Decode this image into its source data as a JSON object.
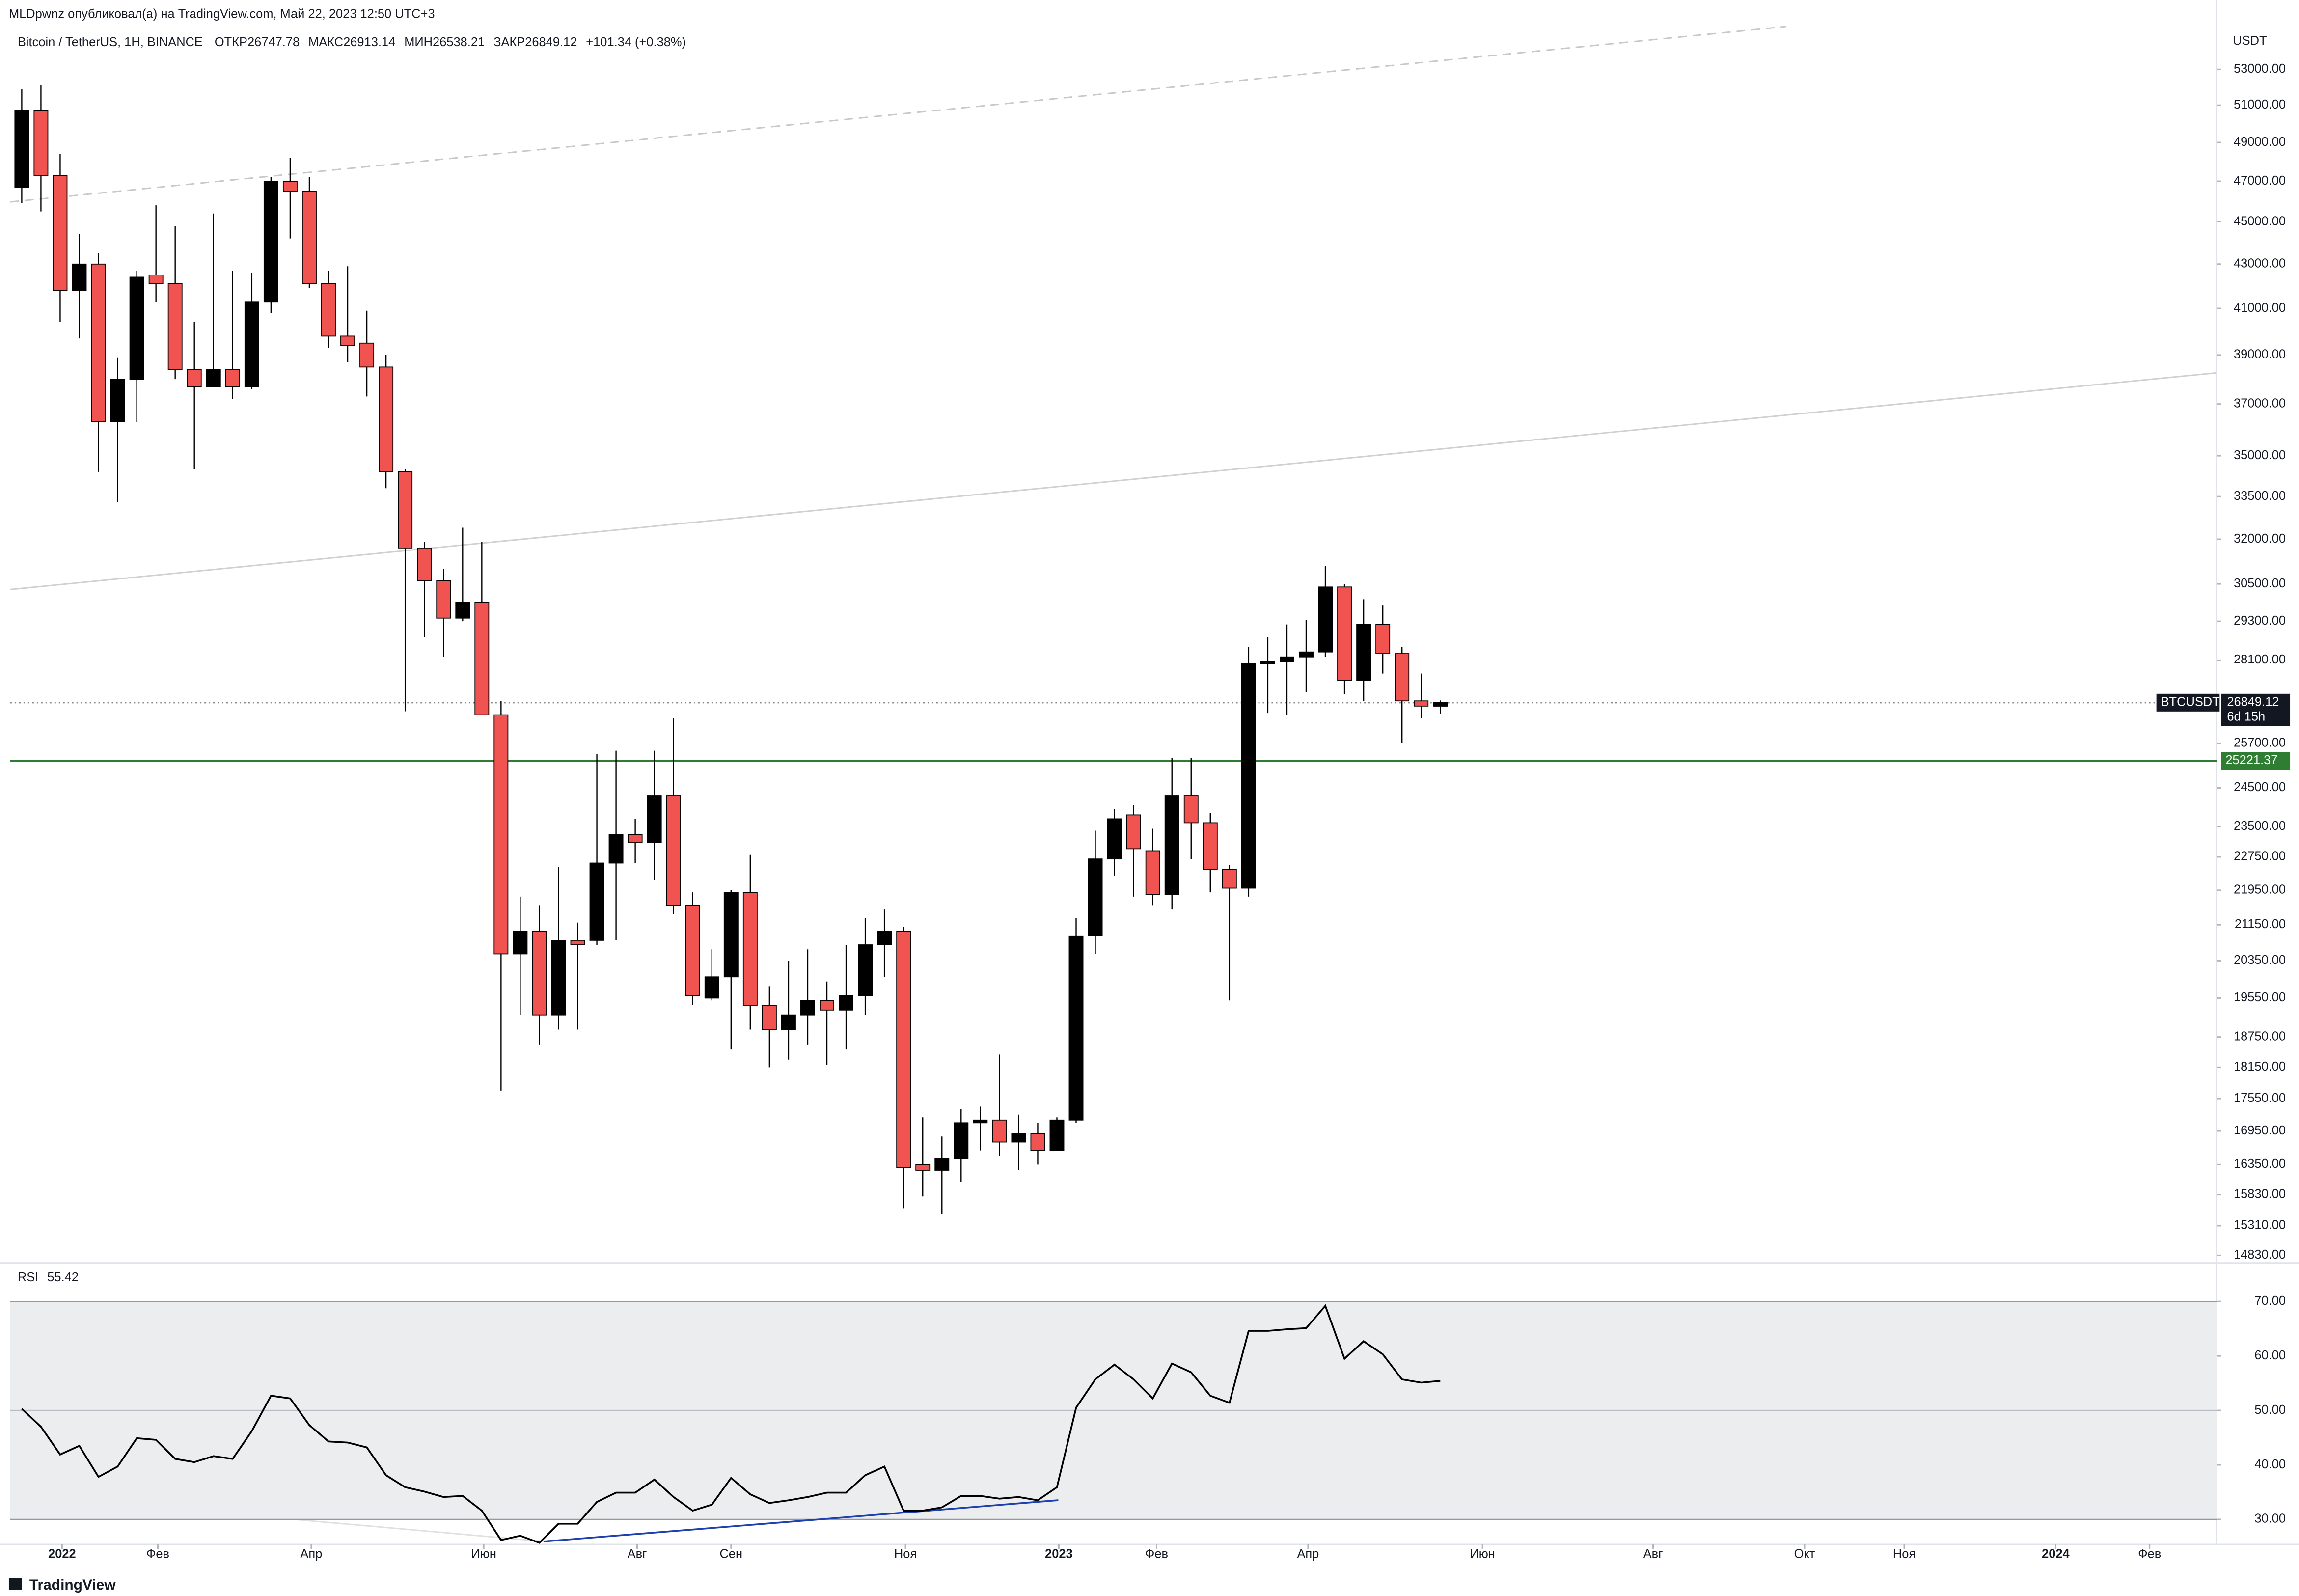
{
  "header": {
    "published": "MLDpwnz опубликовал(а) на TradingView.com, Май 22, 2023 12:50 UTC+3",
    "symbol": "Bitcoin / TetherUS, 1H, BINANCE",
    "ohlc": [
      {
        "label": "ОТКР",
        "value": "26747.78"
      },
      {
        "label": "МАКС",
        "value": "26913.14"
      },
      {
        "label": "МИН",
        "value": "26538.21"
      },
      {
        "label": "ЗАКР",
        "value": "26849.12"
      }
    ],
    "change": "+101.34 (+0.38%)"
  },
  "chart_data": [
    {
      "type": "candlestick",
      "currency": "USDT",
      "log_scale": true,
      "up_color": "#000000",
      "down_color": "#f05350",
      "open": [
        46700,
        50700,
        47300,
        41800,
        43000,
        36300,
        38000,
        42500,
        42100,
        38400,
        37700,
        38400,
        37700,
        41300,
        47000,
        46500,
        42100,
        39800,
        39500,
        38500,
        34400,
        31700,
        30600,
        29400,
        29900,
        26500,
        20500,
        21000,
        19200,
        20800,
        20800,
        22600,
        23300,
        23100,
        24300,
        21600,
        19550,
        20000,
        21900,
        19400,
        18900,
        19200,
        19500,
        19300,
        19600,
        20700,
        21000,
        16350,
        16250,
        16450,
        17100,
        17150,
        16750,
        16900,
        16600,
        17150,
        20900,
        22700,
        23800,
        22900,
        21850,
        24300,
        23600,
        22450,
        22000,
        28000,
        28050,
        28200,
        28350,
        30400,
        27500,
        29200,
        28300,
        26900,
        26747.78
      ],
      "high": [
        51900,
        52100,
        48400,
        44400,
        43500,
        38900,
        42700,
        45800,
        44800,
        40400,
        45400,
        42700,
        42600,
        47200,
        48200,
        47200,
        42700,
        42900,
        40900,
        39000,
        34500,
        31900,
        31000,
        32400,
        31900,
        26900,
        21800,
        21600,
        22500,
        21200,
        25400,
        25500,
        23700,
        25500,
        26400,
        21900,
        20600,
        21950,
        22800,
        19800,
        20350,
        20600,
        19900,
        20700,
        21300,
        21500,
        21100,
        17200,
        16850,
        17350,
        17400,
        18400,
        17250,
        17100,
        17200,
        21300,
        23400,
        23950,
        24050,
        23450,
        25300,
        25300,
        23850,
        22550,
        28500,
        28800,
        29200,
        29350,
        31100,
        30500,
        30000,
        29800,
        28500,
        27700,
        26913.14
      ],
      "low": [
        45900,
        45500,
        40400,
        39700,
        34400,
        33300,
        36300,
        41300,
        38000,
        34500,
        37700,
        37200,
        37600,
        40800,
        44200,
        41900,
        39300,
        38700,
        37300,
        33800,
        26600,
        28800,
        28200,
        29300,
        26500,
        17700,
        19200,
        18600,
        18900,
        18900,
        20700,
        20800,
        22600,
        22200,
        21400,
        19400,
        19500,
        18500,
        18900,
        18150,
        18300,
        18600,
        18200,
        18500,
        19200,
        20000,
        15600,
        15800,
        15500,
        16050,
        16600,
        16500,
        16250,
        16350,
        16600,
        17100,
        20500,
        22300,
        21800,
        21600,
        21500,
        22700,
        21900,
        19500,
        21800,
        26550,
        26500,
        27150,
        28200,
        27100,
        26900,
        27700,
        25700,
        26400,
        26538.21
      ],
      "close": [
        50700,
        47300,
        41800,
        43000,
        36300,
        38000,
        42400,
        42100,
        38400,
        37700,
        38400,
        37700,
        41300,
        47000,
        46500,
        42100,
        39800,
        39400,
        38500,
        34400,
        31700,
        30600,
        29400,
        29900,
        26500,
        20500,
        21000,
        19200,
        20800,
        20700,
        22600,
        23300,
        23100,
        24300,
        21600,
        19600,
        20000,
        21900,
        19400,
        18900,
        19200,
        19500,
        19300,
        19600,
        20700,
        21000,
        16300,
        16250,
        16450,
        17100,
        17150,
        16750,
        16900,
        16600,
        17150,
        20900,
        22700,
        23700,
        22950,
        21850,
        24300,
        23600,
        22450,
        22000,
        28000,
        28050,
        28200,
        28350,
        30400,
        27500,
        29200,
        28300,
        26900,
        26750,
        26849.12
      ],
      "xlim": [
        -0.6,
        114.5
      ],
      "xticks": [
        {
          "value": 2.1,
          "label": "2022"
        },
        {
          "value": 7.1,
          "label": "Фев"
        },
        {
          "value": 15.1,
          "label": "Апр"
        },
        {
          "value": 24.1,
          "label": "Июн"
        },
        {
          "value": 32.1,
          "label": "Авг"
        },
        {
          "value": 37.0,
          "label": "Сен"
        },
        {
          "value": 46.1,
          "label": "Ноя"
        },
        {
          "value": 54.1,
          "label": "2023"
        },
        {
          "value": 59.2,
          "label": "Фев"
        },
        {
          "value": 67.1,
          "label": "Апр"
        },
        {
          "value": 76.2,
          "label": "Июн"
        },
        {
          "value": 85.1,
          "label": "Авг"
        },
        {
          "value": 93.0,
          "label": "Окт"
        },
        {
          "value": 98.2,
          "label": "Ноя"
        },
        {
          "value": 106.1,
          "label": "2024"
        },
        {
          "value": 111.0,
          "label": "Фев"
        }
      ],
      "ylim": [
        14710,
        57100
      ],
      "yticks": [
        {
          "value": 53000,
          "label": "53000.00"
        },
        {
          "value": 51000,
          "label": "51000.00"
        },
        {
          "value": 49000,
          "label": "49000.00"
        },
        {
          "value": 47000,
          "label": "47000.00"
        },
        {
          "value": 45000,
          "label": "45000.00"
        },
        {
          "value": 43000,
          "label": "43000.00"
        },
        {
          "value": 41000,
          "label": "41000.00"
        },
        {
          "value": 39000,
          "label": "39000.00"
        },
        {
          "value": 37000,
          "label": "37000.00"
        },
        {
          "value": 35000,
          "label": "35000.00"
        },
        {
          "value": 33500,
          "label": "33500.00"
        },
        {
          "value": 32000,
          "label": "32000.00"
        },
        {
          "value": 30500,
          "label": "30500.00"
        },
        {
          "value": 29300,
          "label": "29300.00"
        },
        {
          "value": 28100,
          "label": "28100.00"
        },
        {
          "value": 25700,
          "label": "25700.00"
        },
        {
          "value": 24500,
          "label": "24500.00"
        },
        {
          "value": 23500,
          "label": "23500.00"
        },
        {
          "value": 22750,
          "label": "22750.00"
        },
        {
          "value": 21950,
          "label": "21950.00"
        },
        {
          "value": 21150,
          "label": "21150.00"
        },
        {
          "value": 20350,
          "label": "20350.00"
        },
        {
          "value": 19550,
          "label": "19550.00"
        },
        {
          "value": 18750,
          "label": "18750.00"
        },
        {
          "value": 18150,
          "label": "18150.00"
        },
        {
          "value": 17550,
          "label": "17550.00"
        },
        {
          "value": 16950,
          "label": "16950.00"
        },
        {
          "value": 16350,
          "label": "16350.00"
        },
        {
          "value": 15830,
          "label": "15830.00"
        },
        {
          "value": 15310,
          "label": "15310.00"
        },
        {
          "value": 14830,
          "label": "14830.00"
        }
      ],
      "price_label": {
        "symbol": "BTCUSDT",
        "value": 26849.12,
        "countdown": "6d 15h"
      },
      "level": {
        "value": 25221.37,
        "color": "#2e7d32"
      }
    },
    {
      "type": "line",
      "title": "RSI",
      "last": 55.42,
      "color": "#000000",
      "values": [
        50.3,
        47.0,
        41.9,
        43.5,
        37.8,
        39.7,
        44.9,
        44.6,
        41.1,
        40.5,
        41.6,
        41.1,
        46.2,
        52.7,
        52.2,
        47.3,
        44.3,
        44.1,
        43.2,
        38.1,
        35.9,
        35.1,
        34.1,
        34.3,
        31.6,
        26.2,
        27.0,
        25.7,
        29.2,
        29.2,
        33.2,
        34.9,
        34.9,
        37.3,
        34.1,
        31.6,
        32.7,
        37.6,
        34.6,
        33.0,
        33.5,
        34.1,
        34.9,
        34.9,
        38.1,
        39.7,
        31.6,
        31.6,
        32.2,
        34.3,
        34.3,
        33.8,
        34.1,
        33.5,
        35.9,
        50.5,
        55.7,
        58.4,
        55.7,
        52.2,
        58.6,
        57.0,
        52.7,
        51.4,
        64.6,
        64.6,
        64.9,
        65.1,
        69.2,
        59.5,
        62.7,
        60.3,
        55.7,
        55.1,
        55.42
      ],
      "ylim": [
        25.4,
        76.8
      ],
      "yticks": [
        {
          "value": 70,
          "label": "70.00"
        },
        {
          "value": 60,
          "label": "60.00"
        },
        {
          "value": 50,
          "label": "50.00"
        },
        {
          "value": 40,
          "label": "40.00"
        },
        {
          "value": 30,
          "label": "30.00"
        }
      ],
      "levels": [
        30,
        50,
        70
      ]
    }
  ],
  "footer": "TradingView"
}
